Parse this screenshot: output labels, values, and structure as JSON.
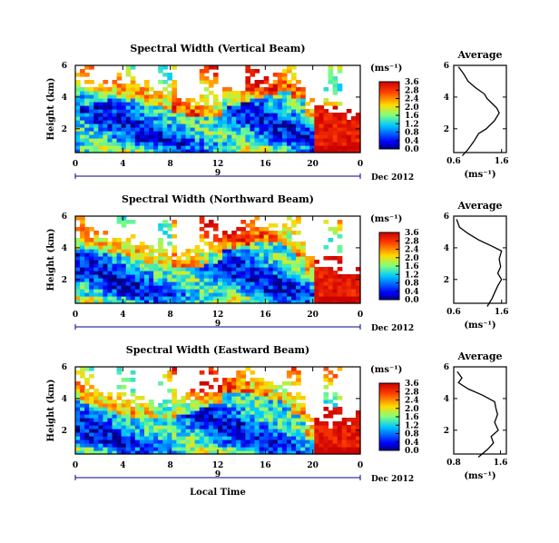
{
  "chart_data": [
    {
      "type": "heatmap",
      "title": "Spectral Width (Vertical Beam)",
      "ylabel": "Height (km)",
      "xlabel": "",
      "x_ticks": [
        "0",
        "4",
        "8",
        "12",
        "16",
        "20",
        "0"
      ],
      "y_ticks": [
        "2",
        "4",
        "6"
      ],
      "xlim": [
        0,
        24
      ],
      "ylim": [
        0.5,
        6
      ],
      "date_marker": "9",
      "date_label": "Dec 2012",
      "colorbar": {
        "label": "(ms⁻¹)",
        "ticks": [
          "0.0",
          "0.4",
          "0.8",
          "1.2",
          "1.6",
          "2.0",
          "2.4",
          "2.8",
          "3.6"
        ]
      },
      "average_profile": {
        "title": "Average",
        "xlabel": "(ms⁻¹)",
        "x_ticks": [
          "0.6",
          "1.6"
        ],
        "y_ticks": [
          "2",
          "4",
          "6"
        ],
        "xlim": [
          0.6,
          1.7
        ],
        "points": [
          [
            0.78,
            0.3
          ],
          [
            0.9,
            0.7
          ],
          [
            1.02,
            1.2
          ],
          [
            1.12,
            1.7
          ],
          [
            1.28,
            2.0
          ],
          [
            1.45,
            2.5
          ],
          [
            1.55,
            3.0
          ],
          [
            1.5,
            3.3
          ],
          [
            1.4,
            3.6
          ],
          [
            1.3,
            3.9
          ],
          [
            1.24,
            4.2
          ],
          [
            1.05,
            4.6
          ],
          [
            0.9,
            5.0
          ],
          [
            0.8,
            5.5
          ],
          [
            0.7,
            5.9
          ]
        ]
      }
    },
    {
      "type": "heatmap",
      "title": "Spectral Width (Northward Beam)",
      "ylabel": "Height (km)",
      "xlabel": "",
      "x_ticks": [
        "0",
        "4",
        "8",
        "12",
        "16",
        "20",
        "0"
      ],
      "y_ticks": [
        "2",
        "4",
        "6"
      ],
      "xlim": [
        0,
        24
      ],
      "ylim": [
        0.5,
        6
      ],
      "date_marker": "9",
      "date_label": "Dec 2012",
      "colorbar": {
        "label": "(ms⁻¹)",
        "ticks": [
          "0.0",
          "0.4",
          "0.8",
          "1.2",
          "1.6",
          "2.0",
          "2.4",
          "2.8",
          "3.6"
        ]
      },
      "average_profile": {
        "title": "Average",
        "xlabel": "(ms⁻¹)",
        "x_ticks": [
          "0.6",
          "1.6"
        ],
        "y_ticks": [
          "2",
          "4",
          "6"
        ],
        "xlim": [
          0.6,
          1.7
        ],
        "points": [
          [
            1.3,
            0.3
          ],
          [
            1.4,
            0.8
          ],
          [
            1.46,
            1.2
          ],
          [
            1.52,
            1.6
          ],
          [
            1.6,
            2.0
          ],
          [
            1.52,
            2.4
          ],
          [
            1.58,
            2.8
          ],
          [
            1.55,
            3.3
          ],
          [
            1.6,
            3.8
          ],
          [
            1.4,
            4.1
          ],
          [
            1.12,
            4.5
          ],
          [
            0.9,
            4.9
          ],
          [
            0.72,
            5.3
          ],
          [
            0.66,
            5.8
          ]
        ]
      }
    },
    {
      "type": "heatmap",
      "title": "Spectral Width (Eastward Beam)",
      "ylabel": "Height (km)",
      "xlabel": "Local Time",
      "x_ticks": [
        "0",
        "4",
        "8",
        "12",
        "16",
        "20",
        "0"
      ],
      "y_ticks": [
        "2",
        "4",
        "6"
      ],
      "xlim": [
        0,
        24
      ],
      "ylim": [
        0.5,
        6
      ],
      "date_marker": "9",
      "date_label": "Dec 2012",
      "colorbar": {
        "label": "(ms⁻¹)",
        "ticks": [
          "0.0",
          "0.4",
          "0.8",
          "1.2",
          "1.6",
          "2.0",
          "2.4",
          "2.8",
          "3.6"
        ]
      },
      "average_profile": {
        "title": "Average",
        "xlabel": "(ms⁻¹)",
        "x_ticks": [
          "0.8",
          "1.6"
        ],
        "y_ticks": [
          "2",
          "4",
          "6"
        ],
        "xlim": [
          0.8,
          1.7
        ],
        "points": [
          [
            1.22,
            0.3
          ],
          [
            1.38,
            0.8
          ],
          [
            1.48,
            1.2
          ],
          [
            1.44,
            1.6
          ],
          [
            1.56,
            2.0
          ],
          [
            1.5,
            2.5
          ],
          [
            1.55,
            3.0
          ],
          [
            1.52,
            3.4
          ],
          [
            1.5,
            3.8
          ],
          [
            1.3,
            4.2
          ],
          [
            1.05,
            4.6
          ],
          [
            0.88,
            5.0
          ],
          [
            0.94,
            5.3
          ],
          [
            0.86,
            5.7
          ]
        ]
      }
    }
  ]
}
